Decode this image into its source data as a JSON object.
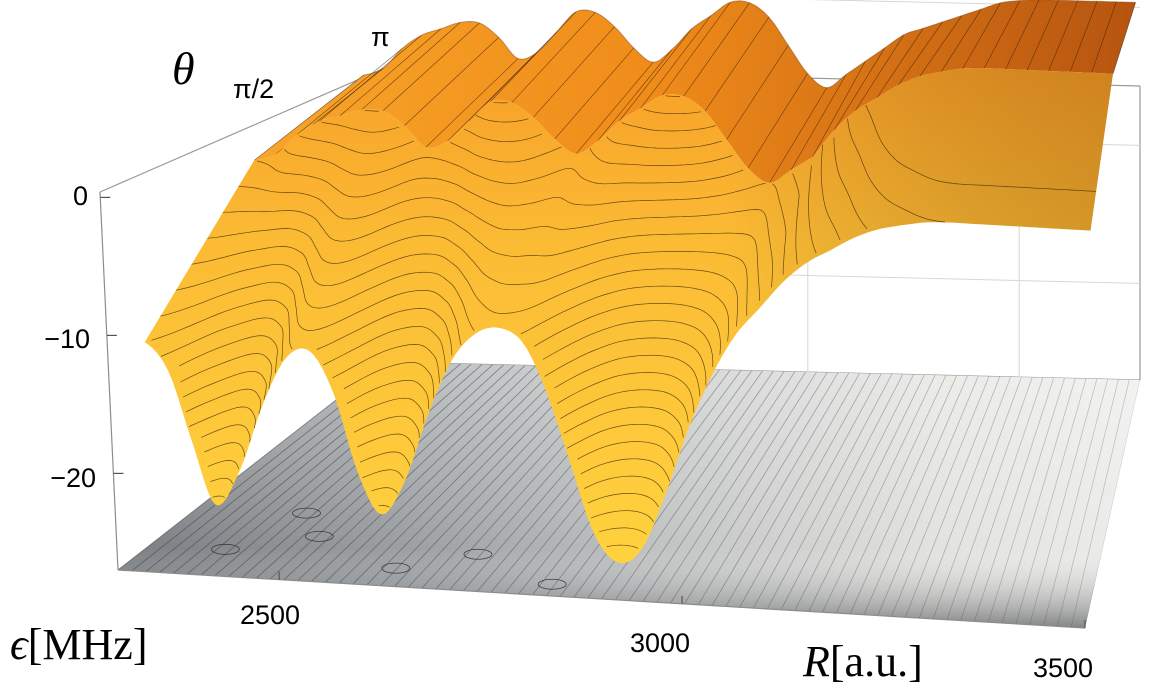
{
  "chart_data": {
    "type": "surface3d",
    "x_axis": {
      "label": "R",
      "unit": "[a.u.]",
      "range": [
        2300,
        3500
      ],
      "ticks": [
        "2500",
        "3000",
        "3500"
      ]
    },
    "z_axis": {
      "label": "ϵ",
      "unit": "[MHz]",
      "range": [
        -27,
        2
      ],
      "ticks": [
        "0",
        "−10",
        "−20"
      ]
    },
    "theta_axis": {
      "label": "θ",
      "range": [
        "0",
        "π"
      ],
      "ticks": [
        "π/2",
        "π"
      ]
    },
    "grid": true,
    "colors": {
      "surface": "#f0961e",
      "surface_light": "#ffc83c",
      "surface_dark": "#b4500a",
      "floor_dark": "#5a5e62",
      "floor_light": "#e8e8e2"
    },
    "ridge_profile": {
      "R": [
        2300,
        2330,
        2360,
        2390,
        2420,
        2450,
        2480,
        2510,
        2540,
        2570,
        2600,
        2630,
        2660,
        2690,
        2720,
        2750,
        2780,
        2810,
        2840,
        2870,
        2900,
        2930,
        2960,
        2990,
        3020,
        3050,
        3080,
        3110,
        3140,
        3170,
        3200,
        3230,
        3260,
        3290,
        3320,
        3350,
        3380,
        3410,
        3440,
        3470,
        3500
      ],
      "epsilon_min": [
        -12,
        -14,
        -19,
        -23.5,
        -21,
        -16,
        -12.5,
        -12,
        -15,
        -20.5,
        -23.5,
        -21,
        -16,
        -12,
        -10,
        -9.5,
        -10.5,
        -14,
        -19,
        -24,
        -26,
        -25,
        -21,
        -16,
        -12,
        -9,
        -7,
        -5,
        -3.5,
        -2.5,
        -1.5,
        -0.8,
        -0.4,
        -0.1,
        0,
        0,
        0,
        0,
        0,
        0,
        0
      ],
      "epsilon_max": [
        -5,
        -4.5,
        -3,
        -2,
        -1.5,
        -1,
        -1,
        -2,
        -3.5,
        -3,
        -1.5,
        0,
        0,
        -1,
        -2.5,
        -3.5,
        -2.5,
        -1,
        0,
        1,
        1,
        0,
        -2,
        -4,
        -5,
        -4,
        -3,
        -2,
        -1,
        -0.5,
        0,
        0.5,
        1,
        1.5,
        1.7,
        1.8,
        1.8,
        1.8,
        1.8,
        1.8,
        1.8
      ]
    }
  }
}
